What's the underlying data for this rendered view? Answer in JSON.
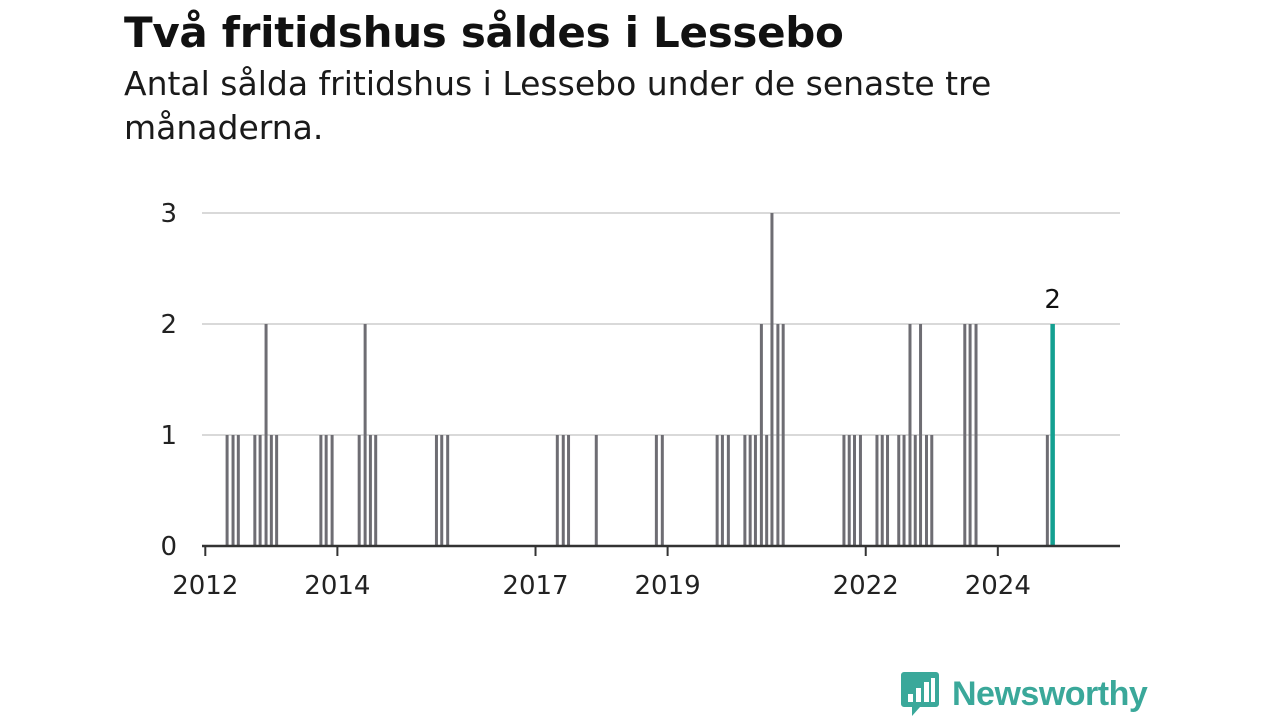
{
  "title": "Två fritidshus såldes i Lessebo",
  "subtitle": "Antal sålda fritidshus i Lessebo under de senaste tre månaderna.",
  "brand": {
    "name": "Newsworthy",
    "color": "#3aa89a",
    "icon": "bar-chart-speech-icon"
  },
  "colors": {
    "bar": "#6e6d73",
    "highlight": "#14a091",
    "grid": "#d9d9d9",
    "axis": "#333333"
  },
  "chart_data": {
    "type": "bar",
    "title": "Två fritidshus såldes i Lessebo",
    "subtitle": "Antal sålda fritidshus i Lessebo under de senaste tre månaderna.",
    "xlabel": "",
    "ylabel": "",
    "x_unit": "year",
    "xlim": [
      2011.95,
      2025.85
    ],
    "ylim": [
      0,
      3
    ],
    "yticks": [
      "0",
      "1",
      "2",
      "3"
    ],
    "xticks": [
      {
        "x": 2012,
        "label": "2012"
      },
      {
        "x": 2014,
        "label": "2014"
      },
      {
        "x": 2017,
        "label": "2017"
      },
      {
        "x": 2019,
        "label": "2019"
      },
      {
        "x": 2022,
        "label": "2022"
      },
      {
        "x": 2024,
        "label": "2024"
      }
    ],
    "grid": true,
    "legend": "none",
    "highlight_label": "2",
    "series": [
      {
        "values": [
          {
            "x": 2012.33,
            "y": 1
          },
          {
            "x": 2012.42,
            "y": 1
          },
          {
            "x": 2012.5,
            "y": 1
          },
          {
            "x": 2012.75,
            "y": 1
          },
          {
            "x": 2012.83,
            "y": 1
          },
          {
            "x": 2012.92,
            "y": 2
          },
          {
            "x": 2013.0,
            "y": 1
          },
          {
            "x": 2013.08,
            "y": 1
          },
          {
            "x": 2013.75,
            "y": 1
          },
          {
            "x": 2013.83,
            "y": 1
          },
          {
            "x": 2013.92,
            "y": 1
          },
          {
            "x": 2014.33,
            "y": 1
          },
          {
            "x": 2014.42,
            "y": 2
          },
          {
            "x": 2014.5,
            "y": 1
          },
          {
            "x": 2014.58,
            "y": 1
          },
          {
            "x": 2015.5,
            "y": 1
          },
          {
            "x": 2015.58,
            "y": 1
          },
          {
            "x": 2015.67,
            "y": 1
          },
          {
            "x": 2017.33,
            "y": 1
          },
          {
            "x": 2017.42,
            "y": 1
          },
          {
            "x": 2017.5,
            "y": 1
          },
          {
            "x": 2017.92,
            "y": 1
          },
          {
            "x": 2018.83,
            "y": 1
          },
          {
            "x": 2018.92,
            "y": 1
          },
          {
            "x": 2019.75,
            "y": 1
          },
          {
            "x": 2019.83,
            "y": 1
          },
          {
            "x": 2019.92,
            "y": 1
          },
          {
            "x": 2020.17,
            "y": 1
          },
          {
            "x": 2020.25,
            "y": 1
          },
          {
            "x": 2020.33,
            "y": 1
          },
          {
            "x": 2020.42,
            "y": 2
          },
          {
            "x": 2020.5,
            "y": 1
          },
          {
            "x": 2020.58,
            "y": 3
          },
          {
            "x": 2020.67,
            "y": 2
          },
          {
            "x": 2020.75,
            "y": 2
          },
          {
            "x": 2021.67,
            "y": 1
          },
          {
            "x": 2021.75,
            "y": 1
          },
          {
            "x": 2021.83,
            "y": 1
          },
          {
            "x": 2021.92,
            "y": 1
          },
          {
            "x": 2022.17,
            "y": 1
          },
          {
            "x": 2022.25,
            "y": 1
          },
          {
            "x": 2022.33,
            "y": 1
          },
          {
            "x": 2022.5,
            "y": 1
          },
          {
            "x": 2022.58,
            "y": 1
          },
          {
            "x": 2022.67,
            "y": 2
          },
          {
            "x": 2022.75,
            "y": 1
          },
          {
            "x": 2022.83,
            "y": 2
          },
          {
            "x": 2022.92,
            "y": 1
          },
          {
            "x": 2023.0,
            "y": 1
          },
          {
            "x": 2023.5,
            "y": 2
          },
          {
            "x": 2023.58,
            "y": 2
          },
          {
            "x": 2023.67,
            "y": 2
          },
          {
            "x": 2024.75,
            "y": 1
          },
          {
            "x": 2024.83,
            "y": 2,
            "highlight": true
          }
        ]
      }
    ]
  }
}
